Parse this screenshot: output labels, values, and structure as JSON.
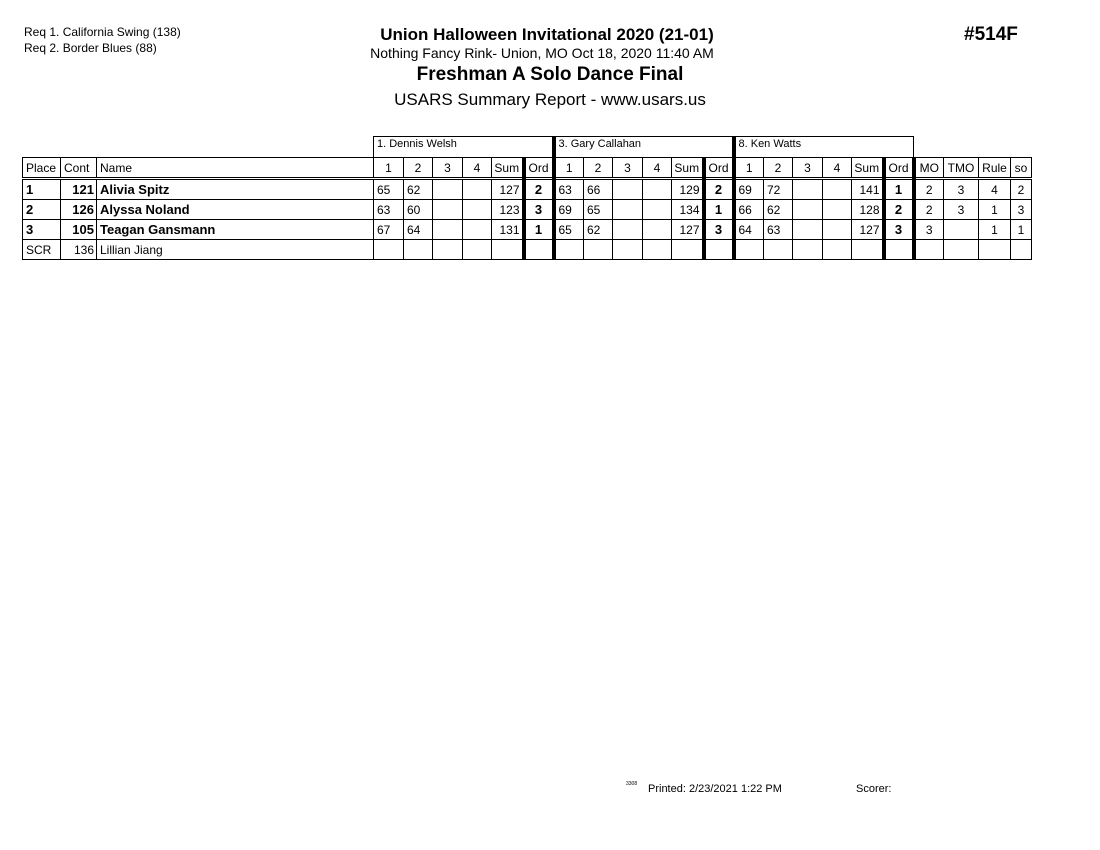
{
  "requirements": [
    "Req  1.  California Swing (138)",
    "Req  2.  Border Blues (88)"
  ],
  "header": {
    "title": "Union Halloween Invitational 2020 (21-01)",
    "venue": "Nothing Fancy Rink- Union, MO  Oct 18, 2020  11:40 AM",
    "event": "Freshman A Solo Dance Final",
    "report": "USARS Summary Report - www.usars.us",
    "event_number": "#514F"
  },
  "judges": [
    "1.  Dennis Welsh",
    "3.  Gary Callahan",
    "8.  Ken Watts"
  ],
  "columns": {
    "place": "Place",
    "cont": "Cont",
    "name": "Name",
    "marks": [
      "1",
      "2",
      "3",
      "4"
    ],
    "sum": "Sum",
    "ord": "Ord",
    "mo": "MO",
    "tmo": "TMO",
    "rule": "Rule",
    "so": "so"
  },
  "rows": [
    {
      "place": "1",
      "cont": "121",
      "name": "Alivia Spitz",
      "bold": true,
      "judges": [
        {
          "m": [
            "65",
            "62",
            "",
            ""
          ],
          "sum": "127",
          "ord": "2"
        },
        {
          "m": [
            "63",
            "66",
            "",
            ""
          ],
          "sum": "129",
          "ord": "2"
        },
        {
          "m": [
            "69",
            "72",
            "",
            ""
          ],
          "sum": "141",
          "ord": "1"
        }
      ],
      "mo": "2",
      "tmo": "3",
      "rule": "4",
      "so": "2"
    },
    {
      "place": "2",
      "cont": "126",
      "name": "Alyssa Noland",
      "bold": true,
      "judges": [
        {
          "m": [
            "63",
            "60",
            "",
            ""
          ],
          "sum": "123",
          "ord": "3"
        },
        {
          "m": [
            "69",
            "65",
            "",
            ""
          ],
          "sum": "134",
          "ord": "1"
        },
        {
          "m": [
            "66",
            "62",
            "",
            ""
          ],
          "sum": "128",
          "ord": "2"
        }
      ],
      "mo": "2",
      "tmo": "3",
      "rule": "1",
      "so": "3"
    },
    {
      "place": "3",
      "cont": "105",
      "name": "Teagan Gansmann",
      "bold": true,
      "judges": [
        {
          "m": [
            "67",
            "64",
            "",
            ""
          ],
          "sum": "131",
          "ord": "1"
        },
        {
          "m": [
            "65",
            "62",
            "",
            ""
          ],
          "sum": "127",
          "ord": "3"
        },
        {
          "m": [
            "64",
            "63",
            "",
            ""
          ],
          "sum": "127",
          "ord": "3"
        }
      ],
      "mo": "3",
      "tmo": "",
      "rule": "1",
      "so": "1"
    },
    {
      "place": "SCR",
      "cont": "136",
      "name": "Lillian Jiang",
      "bold": false,
      "judges": [
        {
          "m": [
            "",
            "",
            "",
            ""
          ],
          "sum": "",
          "ord": ""
        },
        {
          "m": [
            "",
            "",
            "",
            ""
          ],
          "sum": "",
          "ord": ""
        },
        {
          "m": [
            "",
            "",
            "",
            ""
          ],
          "sum": "",
          "ord": ""
        }
      ],
      "mo": "",
      "tmo": "",
      "rule": "",
      "so": ""
    }
  ],
  "footer": {
    "code": "3308",
    "printed": "Printed:  2/23/2021  1:22 PM",
    "scorer": "Scorer:"
  }
}
